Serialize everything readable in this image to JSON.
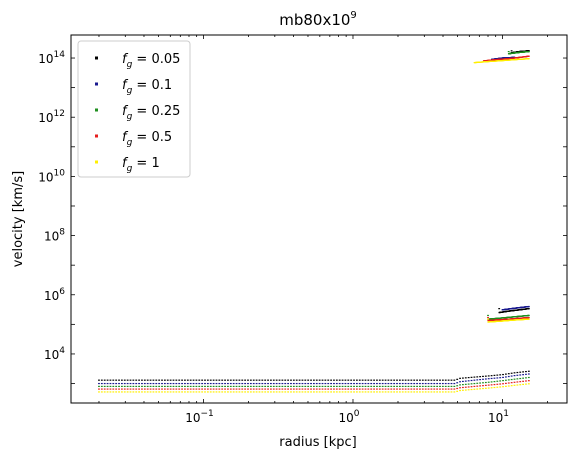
{
  "chart_data": {
    "type": "scatter",
    "title": "mb80x10",
    "title_exponent": "9",
    "xlabel": "radius [kpc]",
    "ylabel": "velocity [km/s]",
    "xscale": "log",
    "yscale": "log",
    "xlim": [
      0.013,
      27
    ],
    "ylim": [
      220,
      600000000000000.0
    ],
    "x_ticks": [
      {
        "value": 0.1,
        "base": "10",
        "exp": "−1"
      },
      {
        "value": 1,
        "base": "10",
        "exp": "0"
      },
      {
        "value": 10,
        "base": "10",
        "exp": "1"
      }
    ],
    "y_ticks": [
      {
        "value": 10000.0,
        "base": "10",
        "exp": "4"
      },
      {
        "value": 1000000.0,
        "base": "10",
        "exp": "6"
      },
      {
        "value": 100000000.0,
        "base": "10",
        "exp": "8"
      },
      {
        "value": 10000000000.0,
        "base": "10",
        "exp": "10"
      },
      {
        "value": 1000000000000.0,
        "base": "10",
        "exp": "12"
      },
      {
        "value": 100000000000000.0,
        "base": "10",
        "exp": "14"
      }
    ],
    "legend_position": "top-left",
    "grid": false,
    "series": [
      {
        "name": "fg = 0.05",
        "legend_label": "f",
        "legend_sub": "g",
        "legend_value": " = 0.05",
        "color": "#000000",
        "groups": [
          {
            "x_min": 0.02,
            "x_max": 15,
            "points": [
              [
                0.02,
                1300
              ],
              [
                0.5,
                1300
              ],
              [
                4.8,
                1300
              ],
              [
                5.2,
                1500
              ],
              [
                6.5,
                1650
              ],
              [
                8,
                1800
              ],
              [
                10,
                2000
              ],
              [
                12,
                2300
              ],
              [
                15,
                2600
              ]
            ]
          },
          {
            "x_min": 9.5,
            "x_max": 15,
            "points": [
              [
                9.5,
                250000
              ],
              [
                11,
                280000
              ],
              [
                13,
                310000
              ],
              [
                15,
                340000
              ]
            ]
          },
          {
            "x_min": 11.5,
            "x_max": 15,
            "points": [
              [
                11.5,
                150000000000000.0
              ],
              [
                13,
                165000000000000.0
              ],
              [
                15,
                175000000000000.0
              ]
            ]
          }
        ]
      },
      {
        "name": "fg = 0.1",
        "legend_label": "f",
        "legend_sub": "g",
        "legend_value": " = 0.1",
        "color": "#1a1a8f",
        "groups": [
          {
            "x_min": 0.02,
            "x_max": 15,
            "points": [
              [
                0.02,
                1000
              ],
              [
                0.5,
                1000
              ],
              [
                4.8,
                1000
              ],
              [
                5.2,
                1150
              ],
              [
                6.5,
                1300
              ],
              [
                8,
                1450
              ],
              [
                10,
                1600
              ],
              [
                12,
                1850
              ],
              [
                15,
                2100
              ]
            ]
          },
          {
            "x_min": 10,
            "x_max": 15,
            "points": [
              [
                10,
                310000
              ],
              [
                12,
                350000
              ],
              [
                15,
                400000
              ]
            ]
          },
          {
            "x_min": 8.5,
            "x_max": 12,
            "points": [
              [
                8.5,
                90000000000000.0
              ],
              [
                10,
                100000000000000.0
              ],
              [
                12,
                105000000000000.0
              ]
            ]
          }
        ]
      },
      {
        "name": "fg = 0.25",
        "legend_label": "f",
        "legend_sub": "g",
        "legend_value": " = 0.25",
        "color": "#1f8f1f",
        "groups": [
          {
            "x_min": 0.02,
            "x_max": 15,
            "points": [
              [
                0.02,
                800
              ],
              [
                0.5,
                800
              ],
              [
                4.8,
                800
              ],
              [
                5.2,
                900
              ],
              [
                6.5,
                1000
              ],
              [
                8,
                1100
              ],
              [
                10,
                1250
              ],
              [
                12,
                1400
              ],
              [
                15,
                1600
              ]
            ]
          },
          {
            "x_min": 8,
            "x_max": 15,
            "points": [
              [
                8,
                150000
              ],
              [
                10,
                165000
              ],
              [
                12,
                180000
              ],
              [
                15,
                200000
              ]
            ]
          },
          {
            "x_min": 11,
            "x_max": 15,
            "points": [
              [
                11,
                140000000000000.0
              ],
              [
                13,
                155000000000000.0
              ],
              [
                15,
                165000000000000.0
              ]
            ]
          }
        ]
      },
      {
        "name": "fg = 0.5",
        "legend_label": "f",
        "legend_sub": "g",
        "legend_value": " = 0.5",
        "color": "#e61e1e",
        "groups": [
          {
            "x_min": 0.02,
            "x_max": 15,
            "points": [
              [
                0.02,
                650
              ],
              [
                0.5,
                650
              ],
              [
                4.8,
                650
              ],
              [
                5.2,
                720
              ],
              [
                6.5,
                800
              ],
              [
                8,
                880
              ],
              [
                10,
                980
              ],
              [
                12,
                1100
              ],
              [
                15,
                1250
              ]
            ]
          },
          {
            "x_min": 8,
            "x_max": 15,
            "points": [
              [
                8,
                135000
              ],
              [
                10,
                145000
              ],
              [
                12,
                155000
              ],
              [
                15,
                170000
              ]
            ]
          },
          {
            "x_min": 7.5,
            "x_max": 15,
            "points": [
              [
                7.5,
                80000000000000.0
              ],
              [
                9,
                88000000000000.0
              ],
              [
                11,
                95000000000000.0
              ],
              [
                13,
                105000000000000.0
              ],
              [
                15,
                115000000000000.0
              ]
            ]
          }
        ]
      },
      {
        "name": "fg = 1",
        "legend_label": "f",
        "legend_sub": "g",
        "legend_value": " = 1",
        "color": "#ffef00",
        "groups": [
          {
            "x_min": 0.02,
            "x_max": 15,
            "points": [
              [
                0.02,
                520
              ],
              [
                0.5,
                520
              ],
              [
                4.8,
                520
              ],
              [
                5.2,
                580
              ],
              [
                6.5,
                640
              ],
              [
                8,
                700
              ],
              [
                10,
                780
              ],
              [
                12,
                870
              ],
              [
                15,
                980
              ]
            ]
          },
          {
            "x_min": 8,
            "x_max": 15,
            "points": [
              [
                8,
                120000
              ],
              [
                10,
                130000
              ],
              [
                12,
                140000
              ],
              [
                15,
                150000
              ]
            ]
          },
          {
            "x_min": 6.5,
            "x_max": 15,
            "points": [
              [
                6.5,
                70000000000000.0
              ],
              [
                8,
                76000000000000.0
              ],
              [
                10,
                82000000000000.0
              ],
              [
                12,
                88000000000000.0
              ],
              [
                15,
                95000000000000.0
              ]
            ]
          }
        ]
      }
    ]
  }
}
